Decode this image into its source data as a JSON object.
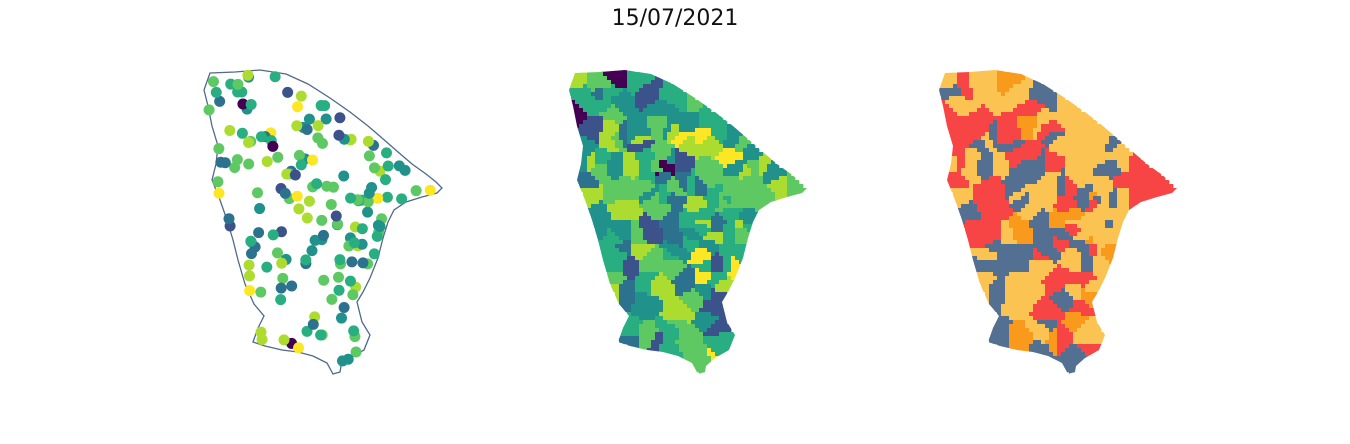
{
  "title": "15/07/2021",
  "colors": {
    "outline": "#4f6a8a",
    "viridis": [
      "#440154",
      "#3b528b",
      "#2c728e",
      "#21918c",
      "#28ae80",
      "#5ec962",
      "#addc30",
      "#fde725"
    ],
    "categorical": {
      "gray_blue": "#536f91",
      "yellow": "#fbc351",
      "orange": "#f99a1d",
      "red": "#f74444"
    }
  },
  "panels": [
    {
      "name": "station-points-map",
      "kind": "points-on-outline"
    },
    {
      "name": "municipality-viridis-map",
      "kind": "choropleth-continuous"
    },
    {
      "name": "municipality-category-map",
      "kind": "choropleth-categorical"
    }
  ]
}
